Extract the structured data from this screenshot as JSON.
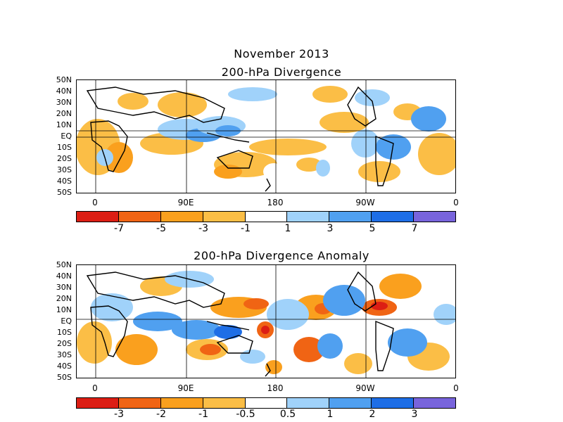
{
  "header": {
    "month": "November 2013"
  },
  "panels": [
    {
      "title": "200-hPa Divergence",
      "lat_labels": [
        "50N",
        "40N",
        "30N",
        "20N",
        "10N",
        "EQ",
        "10S",
        "20S",
        "30S",
        "40S",
        "50S"
      ],
      "lon_labels": [
        "0",
        "90E",
        "180",
        "90W",
        "0"
      ],
      "colorbar": {
        "colors": [
          "#dc1e14",
          "#f06414",
          "#faa01e",
          "#fbbe46",
          "#ffffff",
          "#a0d2fa",
          "#50a0f0",
          "#1e6ee6",
          "#7864dc"
        ],
        "labels": [
          "-7",
          "-5",
          "-3",
          "-1",
          "1",
          "3",
          "5",
          "7"
        ]
      }
    },
    {
      "title": "200-hPa Divergence Anomaly",
      "lat_labels": [
        "50N",
        "40N",
        "30N",
        "20N",
        "10N",
        "EQ",
        "10S",
        "20S",
        "30S",
        "40S",
        "50S"
      ],
      "lon_labels": [
        "0",
        "90E",
        "180",
        "90W",
        "0"
      ],
      "colorbar": {
        "colors": [
          "#dc1e14",
          "#f06414",
          "#faa01e",
          "#fbbe46",
          "#ffffff",
          "#a0d2fa",
          "#50a0f0",
          "#1e6ee6",
          "#7864dc"
        ],
        "labels": [
          "-3",
          "-2",
          "-1",
          "-0.5",
          "0.5",
          "1",
          "2",
          "3"
        ]
      }
    }
  ]
}
